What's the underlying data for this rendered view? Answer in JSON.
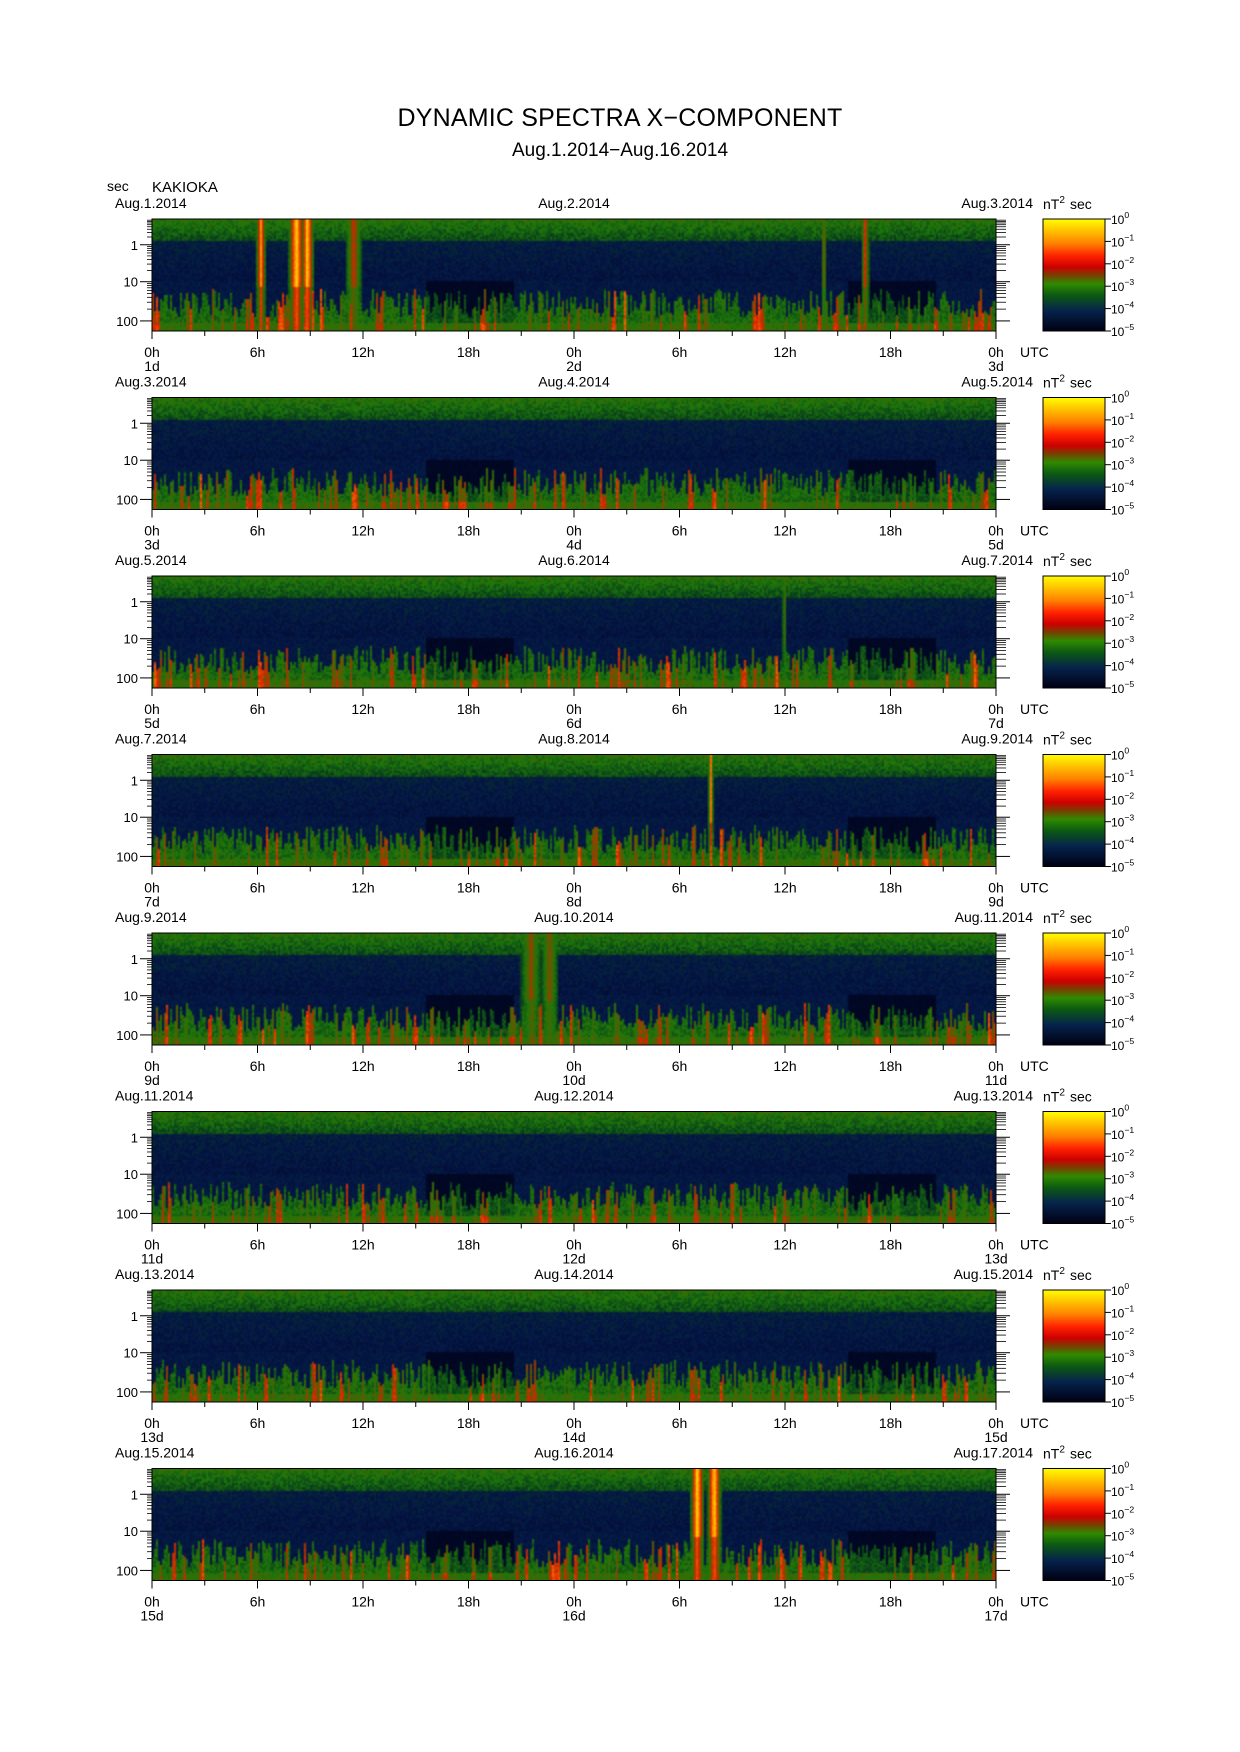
{
  "title": "DYNAMIC SPECTRA X−COMPONENT",
  "subtitle": "Aug.1.2014−Aug.16.2014",
  "y_unit_label": "sec",
  "station": "KAKIOKA",
  "colorbar": {
    "unit_base": "nT",
    "unit_sup": "2",
    "unit_tail": "sec",
    "ticks": [
      {
        "base": "10",
        "exp": "0"
      },
      {
        "base": "10",
        "exp": "−1"
      },
      {
        "base": "10",
        "exp": "−2"
      },
      {
        "base": "10",
        "exp": "−3"
      },
      {
        "base": "10",
        "exp": "−4"
      },
      {
        "base": "10",
        "exp": "−5"
      }
    ],
    "colors": [
      "#ffff00",
      "#ffd000",
      "#ff8c00",
      "#ff3000",
      "#dd0000",
      "#8a3a00",
      "#2e8a00",
      "#0f5a10",
      "#05224a",
      "#000015"
    ]
  },
  "chart_data": {
    "type": "heatmap",
    "y_scale": "log",
    "y_ticks": [
      "1",
      "10",
      "100"
    ],
    "x_ticks": [
      "0h",
      "6h",
      "12h",
      "18h",
      "0h",
      "6h",
      "12h",
      "18h",
      "0h"
    ],
    "x_unit": "UTC",
    "panels": [
      {
        "start_date": "Aug.1.2014",
        "mid_date": "Aug.2.2014",
        "end_date": "Aug.3.2014",
        "day_labels": [
          "1d",
          "2d",
          "3d"
        ],
        "events": [
          {
            "t": 0.128,
            "w": 0.006,
            "s": 0.85
          },
          {
            "t": 0.17,
            "w": 0.01,
            "s": 1.0
          },
          {
            "t": 0.183,
            "w": 0.008,
            "s": 1.0
          },
          {
            "t": 0.238,
            "w": 0.01,
            "s": 0.55
          },
          {
            "t": 0.795,
            "w": 0.003,
            "s": 0.5
          },
          {
            "t": 0.844,
            "w": 0.005,
            "s": 0.6
          }
        ]
      },
      {
        "start_date": "Aug.3.2014",
        "mid_date": "Aug.4.2014",
        "end_date": "Aug.5.2014",
        "day_labels": [
          "3d",
          "4d",
          "5d"
        ],
        "events": []
      },
      {
        "start_date": "Aug.5.2014",
        "mid_date": "Aug.6.2014",
        "end_date": "Aug.7.2014",
        "day_labels": [
          "5d",
          "6d",
          "7d"
        ],
        "events": [
          {
            "t": 0.748,
            "w": 0.002,
            "s": 0.45
          }
        ]
      },
      {
        "start_date": "Aug.7.2014",
        "mid_date": "Aug.8.2014",
        "end_date": "Aug.9.2014",
        "day_labels": [
          "7d",
          "8d",
          "9d"
        ],
        "events": [
          {
            "t": 0.661,
            "w": 0.003,
            "s": 0.8
          }
        ]
      },
      {
        "start_date": "Aug.9.2014",
        "mid_date": "Aug.10.2014",
        "end_date": "Aug.11.2014",
        "day_labels": [
          "9d",
          "10d",
          "11d"
        ],
        "events": [
          {
            "t": 0.448,
            "w": 0.012,
            "s": 0.45
          },
          {
            "t": 0.47,
            "w": 0.01,
            "s": 0.45
          }
        ]
      },
      {
        "start_date": "Aug.11.2014",
        "mid_date": "Aug.12.2014",
        "end_date": "Aug.13.2014",
        "day_labels": [
          "11d",
          "12d",
          "13d"
        ],
        "events": []
      },
      {
        "start_date": "Aug.13.2014",
        "mid_date": "Aug.14.2014",
        "end_date": "Aug.15.2014",
        "day_labels": [
          "13d",
          "14d",
          "15d"
        ],
        "events": []
      },
      {
        "start_date": "Aug.15.2014",
        "mid_date": "Aug.16.2014",
        "end_date": "Aug.17.2014",
        "day_labels": [
          "15d",
          "16d",
          "17d"
        ],
        "events": [
          {
            "t": 0.645,
            "w": 0.009,
            "s": 1.0
          },
          {
            "t": 0.665,
            "w": 0.009,
            "s": 1.0
          }
        ]
      }
    ]
  }
}
